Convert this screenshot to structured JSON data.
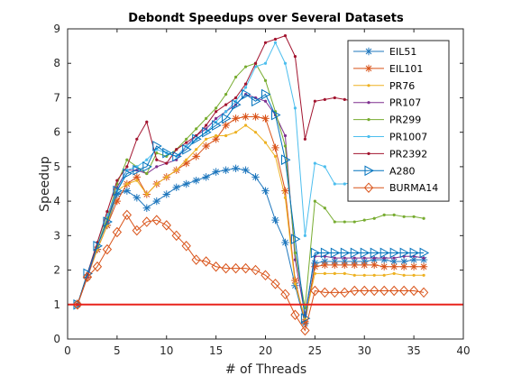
{
  "chart_data": {
    "type": "line",
    "title": "Debondt Speedups over Several Datasets",
    "xlabel": "# of Threads",
    "ylabel": "Speedup",
    "xlim": [
      0,
      40
    ],
    "ylim": [
      0,
      9
    ],
    "xticks": [
      0,
      5,
      10,
      15,
      20,
      25,
      30,
      35,
      40
    ],
    "yticks": [
      0,
      1,
      2,
      3,
      4,
      5,
      6,
      7,
      8,
      9
    ],
    "grid": false,
    "legend_position": "top-right",
    "reference_line": {
      "y": 1,
      "color": "#e8231c"
    },
    "x": [
      1,
      2,
      3,
      4,
      5,
      6,
      7,
      8,
      9,
      10,
      11,
      12,
      13,
      14,
      15,
      16,
      17,
      18,
      19,
      20,
      21,
      22,
      23,
      24,
      25,
      26,
      27,
      28,
      29,
      30,
      31,
      32,
      33,
      34,
      35,
      36
    ],
    "series": [
      {
        "name": "EIL51",
        "color": "#1f77bd",
        "marker": "asterisk",
        "values": [
          1.0,
          1.8,
          2.6,
          3.3,
          4.2,
          4.3,
          4.1,
          3.8,
          4.0,
          4.2,
          4.4,
          4.5,
          4.6,
          4.7,
          4.85,
          4.9,
          4.95,
          4.9,
          4.7,
          4.3,
          3.45,
          2.8,
          1.55,
          0.45,
          2.2,
          2.25,
          2.25,
          2.25,
          2.25,
          2.25,
          2.3,
          2.3,
          2.25,
          2.25,
          2.3,
          2.3
        ]
      },
      {
        "name": "EIL101",
        "color": "#d95319",
        "marker": "asterisk",
        "values": [
          1.0,
          1.8,
          2.6,
          3.3,
          4.0,
          4.5,
          4.7,
          4.2,
          4.5,
          4.7,
          4.9,
          5.1,
          5.3,
          5.6,
          5.8,
          6.2,
          6.4,
          6.45,
          6.45,
          6.4,
          5.55,
          4.3,
          1.7,
          0.5,
          2.1,
          2.15,
          2.15,
          2.15,
          2.15,
          2.15,
          2.15,
          2.1,
          2.1,
          2.1,
          2.1,
          2.1
        ]
      },
      {
        "name": "PR76",
        "color": "#edb120",
        "marker": "dot",
        "values": [
          1.0,
          1.8,
          2.6,
          3.3,
          4.3,
          4.5,
          4.6,
          4.2,
          4.5,
          4.7,
          4.9,
          5.2,
          5.5,
          5.8,
          5.9,
          5.9,
          6.0,
          6.2,
          6.0,
          5.7,
          5.3,
          4.1,
          1.6,
          0.6,
          1.9,
          1.9,
          1.9,
          1.9,
          1.85,
          1.85,
          1.85,
          1.85,
          1.9,
          1.85,
          1.85,
          1.85
        ]
      },
      {
        "name": "PR107",
        "color": "#7e2f8e",
        "marker": "dot",
        "values": [
          1.0,
          1.8,
          2.7,
          3.4,
          4.4,
          4.9,
          4.9,
          4.8,
          5.0,
          5.1,
          5.2,
          5.6,
          5.9,
          6.1,
          6.4,
          6.6,
          6.8,
          7.1,
          7.0,
          6.9,
          6.5,
          5.9,
          2.3,
          0.7,
          2.4,
          2.4,
          2.35,
          2.35,
          2.35,
          2.35,
          2.35,
          2.35,
          2.35,
          2.4,
          2.4,
          2.35
        ]
      },
      {
        "name": "PR299",
        "color": "#77ac30",
        "marker": "dot",
        "values": [
          1.0,
          1.9,
          2.7,
          3.5,
          4.5,
          5.2,
          5.0,
          4.8,
          5.4,
          5.3,
          5.5,
          5.8,
          6.1,
          6.4,
          6.7,
          7.1,
          7.6,
          7.9,
          8.0,
          7.5,
          6.6,
          5.6,
          2.5,
          0.9,
          4.0,
          3.8,
          3.4,
          3.4,
          3.4,
          3.45,
          3.5,
          3.6,
          3.6,
          3.55,
          3.55,
          3.5
        ]
      },
      {
        "name": "PR1007",
        "color": "#4dbeee",
        "marker": "dot",
        "values": [
          1.0,
          1.9,
          2.8,
          3.6,
          4.3,
          4.9,
          5.0,
          5.2,
          5.5,
          5.4,
          5.3,
          5.6,
          5.8,
          6.0,
          6.3,
          6.6,
          6.9,
          7.3,
          7.9,
          8.0,
          8.6,
          8.0,
          6.7,
          3.0,
          5.1,
          5.0,
          4.5,
          4.5,
          4.55,
          4.6,
          5.0,
          5.3,
          5.4,
          5.4,
          5.35,
          5.3
        ]
      },
      {
        "name": "PR2392",
        "color": "#a2142f",
        "marker": "dot",
        "values": [
          1.0,
          1.9,
          2.8,
          3.7,
          4.6,
          5.0,
          5.8,
          6.3,
          5.2,
          5.1,
          5.5,
          5.7,
          5.9,
          6.2,
          6.6,
          6.8,
          7.0,
          7.4,
          8.0,
          8.6,
          8.7,
          8.8,
          8.2,
          5.8,
          6.9,
          6.95,
          7.0,
          6.95,
          6.9,
          6.95,
          7.0,
          7.0,
          7.05,
          7.0,
          7.0,
          7.05
        ]
      },
      {
        "name": "A280",
        "color": "#0072bd",
        "marker": "triangle-right",
        "values": [
          1.0,
          1.9,
          2.7,
          3.4,
          4.3,
          4.8,
          4.9,
          5.0,
          5.6,
          5.4,
          5.3,
          5.5,
          5.8,
          6.0,
          6.2,
          6.4,
          6.8,
          7.1,
          6.9,
          7.1,
          6.5,
          5.2,
          2.9,
          0.6,
          2.5,
          2.5,
          2.5,
          2.5,
          2.5,
          2.5,
          2.5,
          2.5,
          2.5,
          2.5,
          2.5,
          2.5
        ]
      },
      {
        "name": "BURMA14",
        "color": "#d95319",
        "marker": "diamond",
        "values": [
          1.0,
          1.8,
          2.1,
          2.6,
          3.1,
          3.6,
          3.15,
          3.4,
          3.45,
          3.3,
          3.0,
          2.7,
          2.3,
          2.25,
          2.1,
          2.05,
          2.05,
          2.05,
          2.0,
          1.85,
          1.6,
          1.3,
          0.7,
          0.25,
          1.4,
          1.35,
          1.35,
          1.35,
          1.4,
          1.4,
          1.4,
          1.4,
          1.4,
          1.4,
          1.4,
          1.35
        ]
      }
    ]
  }
}
